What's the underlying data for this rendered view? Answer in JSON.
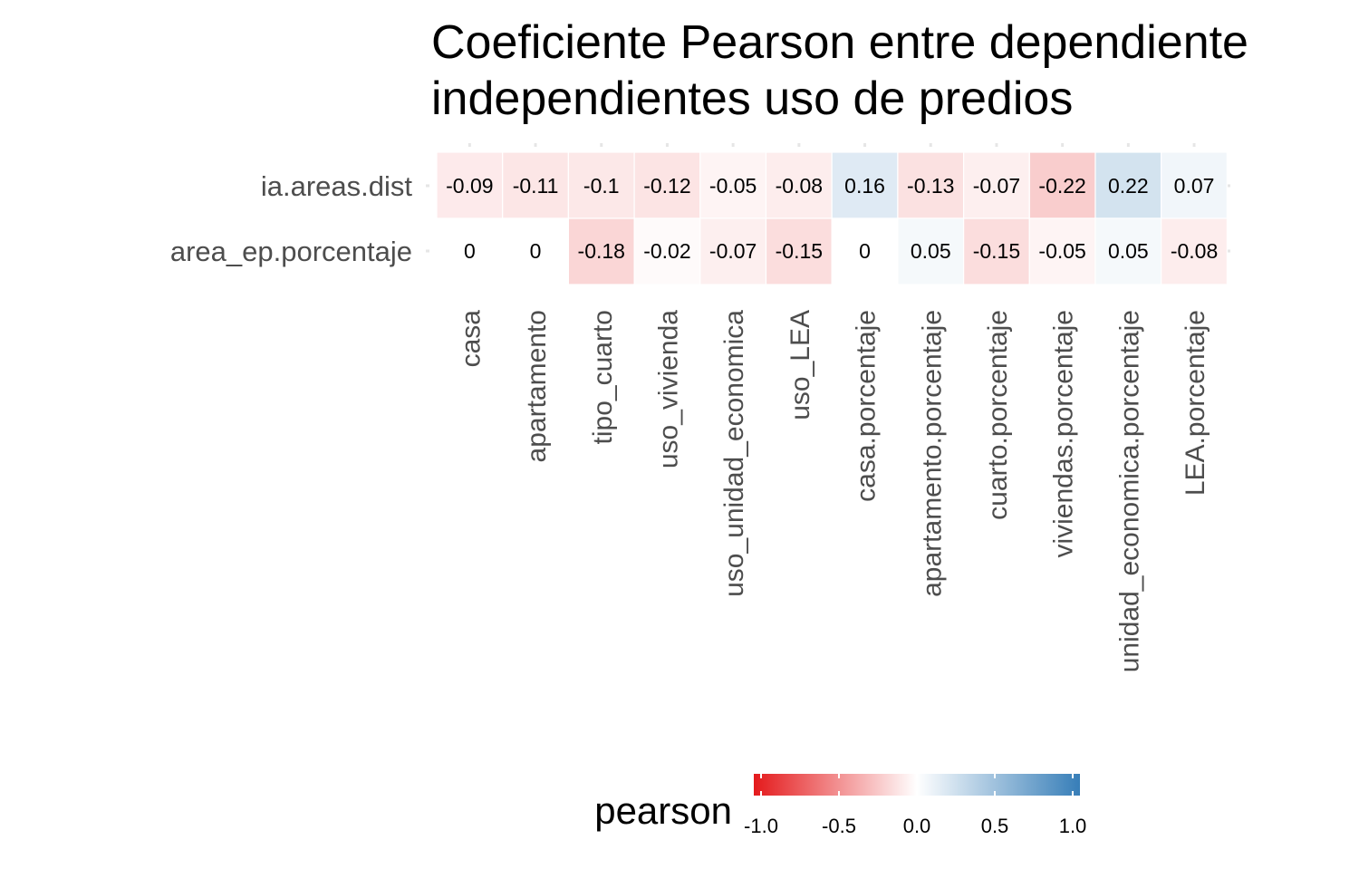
{
  "chart_data": {
    "type": "heatmap",
    "title": "Coeficiente Pearson entre dependiente\nindependientes uso de predios",
    "x_categories": [
      "casa",
      "apartamento",
      "tipo_cuarto",
      "uso_vivienda",
      "uso_unidad_economica",
      "uso_LEA",
      "casa.porcentaje",
      "apartamento.porcentaje",
      "cuarto.porcentaje",
      "viviendas.porcentaje",
      "unidad_economica.porcentaje",
      "LEA.porcentaje"
    ],
    "y_categories": [
      "ia.areas.dist",
      "area_ep.porcentaje"
    ],
    "values": [
      [
        -0.09,
        -0.11,
        -0.1,
        -0.12,
        -0.05,
        -0.08,
        0.16,
        -0.13,
        -0.07,
        -0.22,
        0.22,
        0.07
      ],
      [
        0,
        0,
        -0.18,
        -0.02,
        -0.07,
        -0.15,
        0,
        0.05,
        -0.15,
        -0.05,
        0.05,
        -0.08
      ]
    ],
    "legend": {
      "title": "pearson",
      "ticks": [
        "-1.0",
        "-0.5",
        "0.0",
        "0.5",
        "1.0"
      ],
      "range": [
        -1,
        1
      ],
      "low_color": "#e41a1c",
      "mid_color": "#ffffff",
      "high_color": "#377eb8",
      "position": "bottom"
    },
    "grid": true
  }
}
